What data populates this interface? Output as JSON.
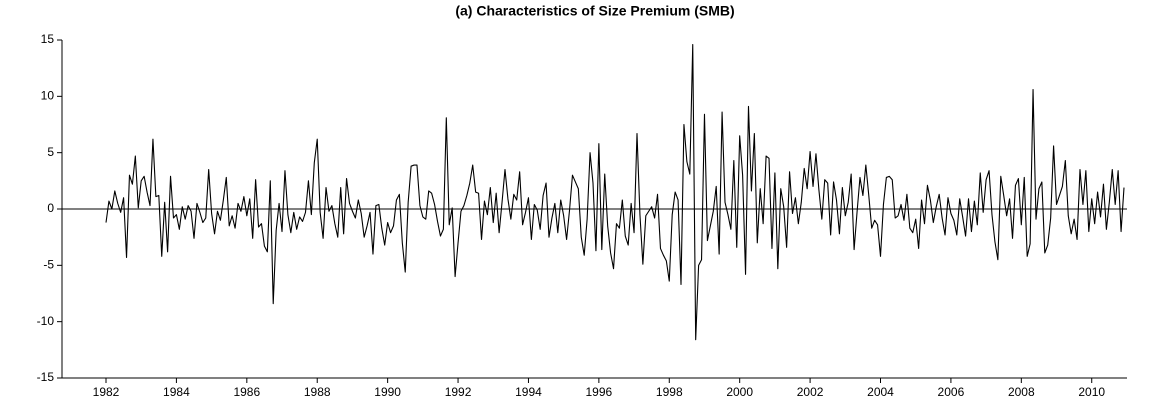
{
  "chart_data": {
    "type": "line",
    "title": "(a) Characteristics of Size Premium (SMB)",
    "categories": [
      "1982",
      null,
      null,
      null,
      null,
      null,
      null,
      null,
      null,
      null,
      null,
      null,
      null,
      null,
      null,
      null,
      null,
      null,
      null,
      null,
      null,
      null,
      null,
      null,
      "1984",
      null,
      null,
      null,
      null,
      null,
      null,
      null,
      null,
      null,
      null,
      null,
      null,
      null,
      null,
      null,
      null,
      null,
      null,
      null,
      null,
      null,
      null,
      null,
      "1986",
      null,
      null,
      null,
      null,
      null,
      null,
      null,
      null,
      null,
      null,
      null,
      null,
      null,
      null,
      null,
      null,
      null,
      null,
      null,
      null,
      null,
      null,
      null,
      "1988",
      null,
      null,
      null,
      null,
      null,
      null,
      null,
      null,
      null,
      null,
      null,
      null,
      null,
      null,
      null,
      null,
      null,
      null,
      null,
      null,
      null,
      null,
      null,
      "1990",
      null,
      null,
      null,
      null,
      null,
      null,
      null,
      null,
      null,
      null,
      null,
      null,
      null,
      null,
      null,
      null,
      null,
      null,
      null,
      null,
      null,
      null,
      null,
      "1992",
      null,
      null,
      null,
      null,
      null,
      null,
      null,
      null,
      null,
      null,
      null,
      null,
      null,
      null,
      null,
      null,
      null,
      null,
      null,
      null,
      null,
      null,
      null,
      "1994",
      null,
      null,
      null,
      null,
      null,
      null,
      null,
      null,
      null,
      null,
      null,
      null,
      null,
      null,
      null,
      null,
      null,
      null,
      null,
      null,
      null,
      null,
      null,
      "1996",
      null,
      null,
      null,
      null,
      null,
      null,
      null,
      null,
      null,
      null,
      null,
      null,
      null,
      null,
      null,
      null,
      null,
      null,
      null,
      null,
      null,
      null,
      null,
      "1998",
      null,
      null,
      null,
      null,
      null,
      null,
      null,
      null,
      null,
      null,
      null,
      null,
      null,
      null,
      null,
      null,
      null,
      null,
      null,
      null,
      null,
      null,
      null,
      "2000",
      null,
      null,
      null,
      null,
      null,
      null,
      null,
      null,
      null,
      null,
      null,
      null,
      null,
      null,
      null,
      null,
      null,
      null,
      null,
      null,
      null,
      null,
      null,
      "2002",
      null,
      null,
      null,
      null,
      null,
      null,
      null,
      null,
      null,
      null,
      null,
      null,
      null,
      null,
      null,
      null,
      null,
      null,
      null,
      null,
      null,
      null,
      null,
      "2004",
      null,
      null,
      null,
      null,
      null,
      null,
      null,
      null,
      null,
      null,
      null,
      null,
      null,
      null,
      null,
      null,
      null,
      null,
      null,
      null,
      null,
      null,
      null,
      "2006",
      null,
      null,
      null,
      null,
      null,
      null,
      null,
      null,
      null,
      null,
      null,
      null,
      null,
      null,
      null,
      null,
      null,
      null,
      null,
      null,
      null,
      null,
      null,
      "2008",
      null,
      null,
      null,
      null,
      null,
      null,
      null,
      null,
      null,
      null,
      null,
      null,
      null,
      null,
      null,
      null,
      null,
      null,
      null,
      null,
      null,
      null,
      null,
      "2010",
      null,
      null,
      null,
      null,
      null,
      null,
      null,
      null,
      null,
      null,
      null
    ],
    "series": [
      {
        "color": "#000000",
        "values": [
          -1.2,
          0.7,
          0.0,
          1.6,
          0.5,
          -0.3,
          1.0,
          -4.3,
          3.0,
          2.2,
          4.7,
          0.1,
          2.5,
          2.9,
          1.5,
          0.3,
          6.2,
          1.1,
          1.2,
          -4.2,
          0.6,
          -3.8,
          2.9,
          -0.8,
          -0.5,
          -1.8,
          0.2,
          -0.9,
          0.3,
          -0.2,
          -2.6,
          0.5,
          -0.3,
          -1.2,
          -0.8,
          3.5,
          -0.4,
          -2.2,
          -0.2,
          -1.0,
          0.8,
          2.8,
          -1.5,
          -0.6,
          -1.7,
          0.5,
          -0.2,
          1.1,
          -0.6,
          0.9,
          -2.6,
          2.6,
          -1.6,
          -1.3,
          -3.3,
          -3.8,
          2.5,
          -8.4,
          -1.9,
          0.5,
          -2.0,
          3.4,
          -0.5,
          -2.1,
          -0.3,
          -1.8,
          -0.7,
          -1.1,
          -0.3,
          2.5,
          -0.5,
          4.1,
          6.2,
          -0.3,
          -2.6,
          1.9,
          -0.2,
          0.3,
          -1.3,
          -2.5,
          1.9,
          -2.2,
          2.7,
          0.5,
          -0.2,
          -0.8,
          0.8,
          -0.4,
          -2.5,
          -1.5,
          -0.3,
          -4.0,
          0.3,
          0.4,
          -1.7,
          -3.2,
          -1.2,
          -2.1,
          -1.5,
          0.8,
          1.3,
          -3.0,
          -5.6,
          0.6,
          3.8,
          3.9,
          3.9,
          0.3,
          -0.7,
          -0.9,
          1.6,
          1.4,
          0.4,
          -1.1,
          -2.4,
          -1.8,
          8.1,
          -1.4,
          0.1,
          -6.0,
          -3.0,
          -0.2,
          0.3,
          1.2,
          2.3,
          3.9,
          1.5,
          1.4,
          -2.7,
          0.7,
          -0.5,
          1.9,
          -1.2,
          1.4,
          -2.1,
          0.6,
          3.5,
          0.9,
          -0.9,
          1.3,
          0.8,
          3.3,
          -1.4,
          -0.3,
          1.0,
          -2.7,
          0.4,
          -0.1,
          -1.8,
          1.2,
          2.3,
          -2.5,
          -0.8,
          0.5,
          -2.1,
          0.8,
          -0.6,
          -2.7,
          -0.1,
          3.0,
          2.4,
          1.8,
          -2.5,
          -4.1,
          -0.9,
          5.0,
          2.3,
          -3.7,
          5.8,
          -3.6,
          3.1,
          -1.5,
          -3.9,
          -5.3,
          -1.3,
          -1.7,
          0.8,
          -2.4,
          -3.2,
          0.5,
          -2.1,
          6.7,
          -0.5,
          -4.9,
          -0.6,
          -0.2,
          0.2,
          -0.8,
          1.3,
          -3.5,
          -4.1,
          -4.6,
          -6.4,
          -0.5,
          1.5,
          0.8,
          -6.7,
          7.5,
          4.2,
          3.1,
          14.6,
          -11.6,
          -5.0,
          -4.5,
          8.4,
          -2.8,
          -1.5,
          -0.2,
          2.0,
          -4.0,
          8.6,
          0.6,
          -0.5,
          -1.8,
          4.3,
          -3.4,
          6.5,
          3.0,
          -5.8,
          9.1,
          1.6,
          6.7,
          -3.0,
          1.8,
          -1.3,
          4.7,
          4.5,
          -3.5,
          3.2,
          -5.3,
          1.8,
          0.2,
          -3.4,
          3.3,
          -0.4,
          1.0,
          -1.3,
          0.6,
          3.6,
          1.8,
          5.1,
          2.0,
          4.9,
          1.7,
          -0.9,
          2.6,
          2.3,
          -2.3,
          2.4,
          0.8,
          -2.2,
          1.9,
          -0.6,
          0.6,
          3.1,
          -3.6,
          -0.3,
          2.8,
          1.2,
          3.9,
          1.2,
          -1.7,
          -1.0,
          -1.4,
          -4.2,
          0.4,
          2.8,
          2.9,
          2.6,
          -0.8,
          -0.6,
          0.4,
          -1.0,
          1.3,
          -1.7,
          -2.1,
          -0.9,
          -3.5,
          0.8,
          -1.3,
          2.1,
          0.8,
          -1.2,
          0.2,
          1.3,
          -0.8,
          -2.3,
          1.0,
          -0.4,
          -1.0,
          -2.3,
          0.9,
          -0.7,
          -2.4,
          0.9,
          -2.0,
          0.7,
          -1.4,
          3.2,
          -0.3,
          2.6,
          3.4,
          -0.5,
          -2.9,
          -4.5,
          2.9,
          1.2,
          -0.6,
          0.9,
          -2.6,
          2.1,
          2.7,
          -1.4,
          2.8,
          -4.2,
          -3.1,
          10.6,
          -0.9,
          1.8,
          2.4,
          -3.9,
          -3.2,
          -0.8,
          5.6,
          0.4,
          1.2,
          2.0,
          4.3,
          -0.6,
          -2.2,
          -0.9,
          -2.7,
          3.5,
          0.4,
          3.4,
          -2.0,
          0.9,
          -1.3,
          1.5,
          -0.7,
          2.2,
          -1.8,
          0.6,
          3.5,
          0.4,
          3.4,
          -2.0,
          1.9
        ]
      }
    ],
    "ylim": [
      -15,
      15
    ],
    "yticks": [
      -15,
      -10,
      -5,
      0,
      5,
      10,
      15
    ]
  }
}
